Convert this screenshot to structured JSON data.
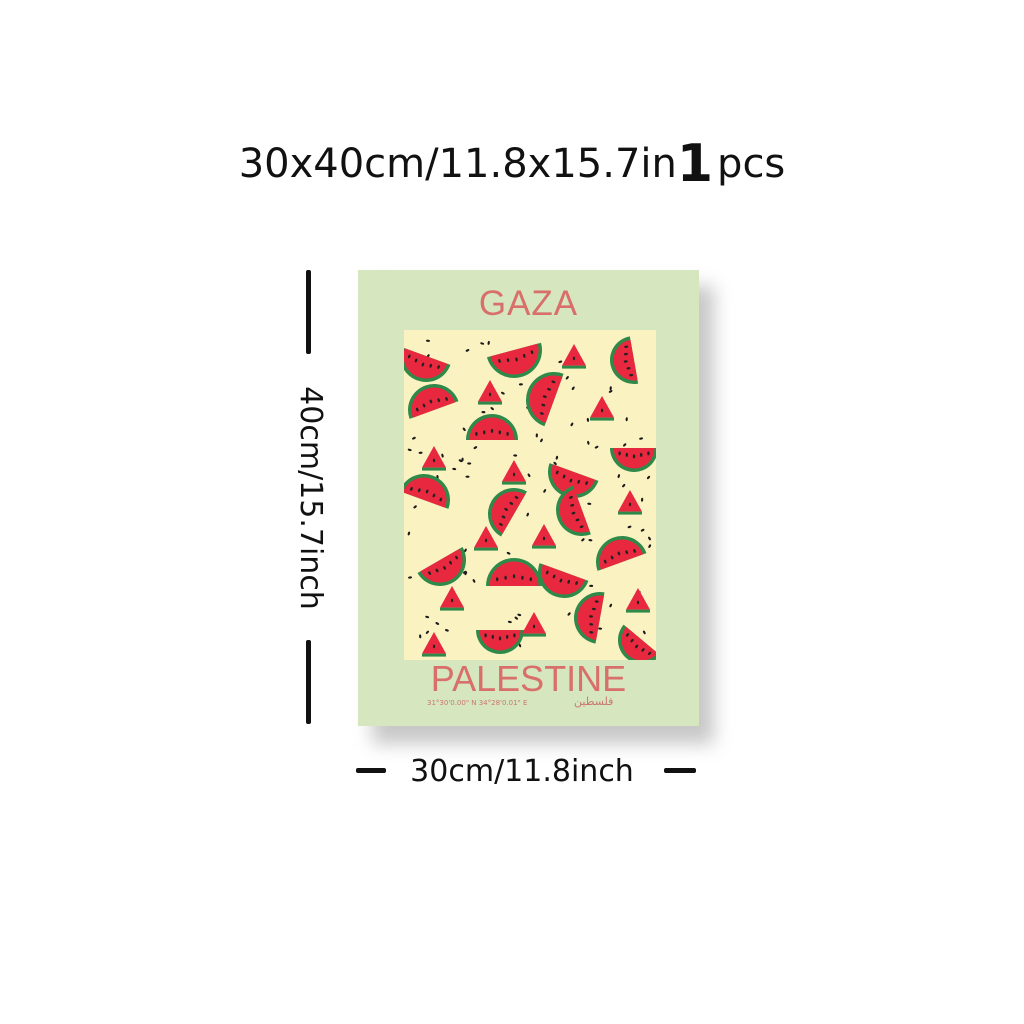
{
  "header": {
    "size_text": "30x40cm/11.8x15.7in",
    "quantity": "1",
    "unit": "pcs"
  },
  "poster": {
    "title": "GAZA",
    "caption": "PALESTINE",
    "coordinates": "31°30'0.00\" N 34°28'0.01\" E",
    "arabic_text": "فلسطين",
    "colors": {
      "border": "#d6e6bf",
      "pattern_background": "#fbf2c2",
      "text": "#d86f6b",
      "watermelon_flesh": "#e8283f",
      "watermelon_rind": "#2f8a4a"
    }
  },
  "dimensions": {
    "height_label": "40cm/15.7inch",
    "width_label": "30cm/11.8inch"
  }
}
